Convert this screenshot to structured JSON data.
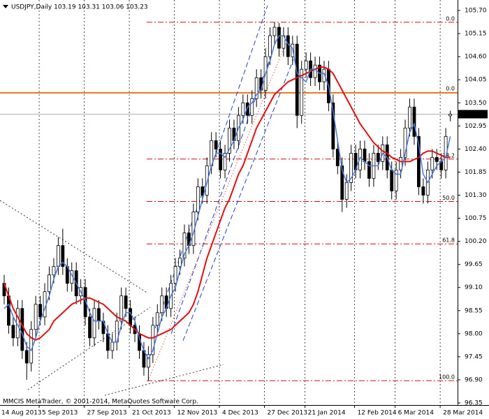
{
  "chart_data": {
    "type": "candlestick",
    "title": "USDJPY,Daily  103.19 103.31 103.06 103.23",
    "footer": "MMCIS MetaTrader, © 2001-2014, MetaQuotes Software Corp.",
    "categories": [
      "14 Aug 2013",
      null,
      null,
      null,
      null,
      null,
      null,
      null,
      null,
      "5 Sep 2013",
      null,
      null,
      null,
      null,
      null,
      null,
      null,
      null,
      null,
      "27 Sep 2013",
      null,
      null,
      null,
      null,
      null,
      null,
      null,
      null,
      null,
      "21 Oct 2013",
      null,
      null,
      null,
      null,
      null,
      null,
      null,
      null,
      null,
      "12 Nov 2013",
      null,
      null,
      null,
      null,
      null,
      null,
      null,
      null,
      null,
      "4 Dec 2013",
      null,
      null,
      null,
      null,
      null,
      null,
      null,
      null,
      null,
      "27 Dec 2013",
      null,
      null,
      null,
      null,
      null,
      null,
      null,
      null,
      "21 Jan 2014",
      null,
      null,
      null,
      null,
      null,
      null,
      null,
      null,
      null,
      null,
      "12 Feb 2014",
      null,
      null,
      null,
      null,
      null,
      null,
      null,
      null,
      "6 Mar 2014",
      null,
      null,
      null,
      null,
      null,
      null,
      null,
      null,
      null,
      "28 Mar 2014",
      null
    ],
    "open": [
      99.2,
      98.9,
      98.2,
      97.9,
      98.6,
      97.6,
      97.3,
      98.1,
      98.7,
      98.4,
      99.0,
      99.4,
      99.6,
      100.1,
      99.6,
      99.2,
      99.5,
      98.9,
      99.1,
      98.4,
      97.9,
      98.6,
      98.3,
      98.0,
      97.6,
      97.8,
      98.3,
      98.9,
      98.6,
      98.2,
      98.0,
      97.6,
      97.2,
      97.5,
      98.2,
      98.5,
      98.9,
      98.6,
      99.2,
      99.6,
      99.8,
      100.4,
      100.1,
      100.9,
      101.5,
      101.3,
      102.0,
      102.6,
      102.4,
      101.9,
      102.3,
      102.9,
      102.6,
      103.2,
      103.5,
      103.2,
      103.6,
      104.1,
      103.8,
      104.6,
      105.1,
      105.3,
      104.8,
      105.1,
      104.6,
      104.9,
      103.2,
      104.3,
      104.5,
      104.1,
      104.4,
      104.0,
      104.3,
      103.5,
      102.4,
      102.0,
      101.2,
      101.6,
      102.3,
      101.9,
      102.4,
      102.1,
      101.7,
      102.3,
      102.1,
      102.5,
      101.9,
      101.4,
      101.9,
      102.2,
      102.9,
      103.4,
      102.7,
      101.5,
      101.3,
      101.9,
      102.2,
      102.1,
      101.9,
      103.19
    ],
    "high": [
      99.4,
      99.1,
      98.4,
      98.8,
      98.8,
      97.8,
      98.3,
      98.9,
      98.9,
      99.2,
      99.6,
      99.8,
      100.3,
      100.5,
      99.8,
      99.7,
      99.7,
      99.3,
      99.3,
      98.6,
      98.8,
      98.8,
      98.5,
      98.2,
      98.0,
      98.5,
      99.1,
      99.1,
      98.8,
      98.4,
      98.2,
      97.8,
      97.7,
      98.4,
      98.7,
      99.1,
      99.1,
      99.4,
      99.8,
      100.0,
      100.6,
      100.6,
      101.1,
      101.7,
      101.7,
      102.2,
      102.8,
      102.8,
      102.6,
      102.5,
      103.1,
      103.1,
      103.4,
      103.7,
      103.7,
      103.8,
      104.3,
      104.3,
      104.8,
      105.3,
      105.42,
      105.4,
      105.3,
      105.3,
      105.1,
      105.1,
      104.5,
      104.7,
      104.7,
      104.6,
      104.6,
      104.5,
      104.5,
      103.7,
      102.6,
      102.2,
      101.8,
      102.5,
      102.5,
      102.6,
      102.6,
      102.3,
      102.5,
      102.5,
      102.7,
      102.7,
      102.1,
      102.1,
      102.4,
      103.1,
      103.6,
      103.6,
      102.9,
      101.7,
      102.1,
      102.4,
      102.4,
      102.3,
      102.9,
      103.31
    ],
    "low": [
      98.7,
      98.0,
      97.7,
      97.7,
      97.4,
      96.9,
      97.1,
      97.9,
      98.2,
      98.2,
      98.8,
      99.2,
      99.4,
      99.4,
      99.0,
      99.0,
      98.7,
      98.7,
      98.2,
      97.7,
      97.7,
      98.1,
      97.8,
      97.4,
      97.4,
      97.6,
      98.1,
      98.4,
      98.0,
      97.8,
      97.4,
      97.0,
      96.88,
      97.3,
      98.0,
      98.3,
      98.4,
      98.4,
      99.0,
      99.4,
      99.6,
      99.9,
      99.9,
      100.7,
      101.1,
      101.1,
      101.8,
      102.2,
      101.7,
      101.7,
      102.1,
      102.4,
      102.4,
      103.0,
      103.0,
      103.0,
      103.4,
      103.6,
      103.6,
      104.4,
      104.9,
      104.6,
      104.6,
      104.4,
      104.4,
      102.9,
      103.0,
      104.1,
      103.9,
      103.9,
      103.8,
      103.8,
      103.3,
      102.2,
      101.8,
      100.9,
      101.0,
      101.4,
      101.7,
      101.7,
      101.9,
      101.5,
      101.5,
      101.9,
      101.9,
      101.7,
      101.2,
      101.2,
      101.7,
      102.0,
      102.7,
      102.5,
      101.3,
      101.1,
      101.1,
      101.7,
      101.9,
      101.7,
      101.7,
      103.06
    ],
    "close": [
      98.9,
      98.2,
      97.9,
      98.6,
      97.6,
      97.3,
      98.1,
      98.7,
      98.4,
      99.0,
      99.4,
      99.6,
      100.1,
      99.6,
      99.2,
      99.5,
      98.9,
      99.1,
      98.4,
      97.9,
      98.6,
      98.3,
      98.0,
      97.6,
      97.8,
      98.3,
      98.9,
      98.6,
      98.2,
      98.0,
      97.6,
      97.2,
      97.5,
      98.2,
      98.5,
      98.9,
      98.6,
      99.2,
      99.6,
      99.8,
      100.4,
      100.1,
      100.9,
      101.5,
      101.3,
      102.0,
      102.6,
      102.4,
      101.9,
      102.3,
      102.9,
      102.6,
      103.2,
      103.5,
      103.2,
      103.6,
      104.1,
      103.8,
      104.6,
      105.1,
      105.3,
      104.8,
      105.1,
      104.6,
      104.9,
      103.2,
      104.3,
      104.5,
      104.1,
      104.4,
      104.0,
      104.3,
      103.5,
      102.4,
      102.0,
      101.2,
      101.6,
      102.3,
      101.9,
      102.4,
      102.1,
      101.7,
      102.3,
      102.1,
      102.5,
      101.9,
      101.4,
      101.9,
      102.2,
      102.9,
      103.4,
      102.7,
      101.5,
      101.3,
      101.9,
      102.2,
      102.1,
      101.9,
      102.7,
      103.23
    ],
    "moving_averages": [
      {
        "color": "#e01010",
        "values": [
          99.2,
          98.9,
          98.6,
          98.4,
          98.2,
          98.0,
          97.9,
          97.85,
          97.9,
          98.0,
          98.1,
          98.3,
          98.4,
          98.5,
          98.6,
          98.7,
          98.75,
          98.8,
          98.85,
          98.85,
          98.8,
          98.75,
          98.7,
          98.6,
          98.5,
          98.4,
          98.35,
          98.3,
          98.2,
          98.1,
          98.0,
          97.95,
          97.9,
          97.9,
          97.95,
          98.0,
          98.05,
          98.1,
          98.2,
          98.3,
          98.4,
          98.5,
          98.7,
          99.0,
          99.4,
          99.8,
          100.1,
          100.4,
          100.7,
          101.0,
          101.2,
          101.5,
          101.8,
          102.0,
          102.3,
          102.6,
          102.9,
          103.1,
          103.3,
          103.5,
          103.7,
          103.8,
          103.9,
          104.0,
          104.05,
          104.1,
          104.15,
          104.2,
          104.25,
          104.3,
          104.35,
          104.35,
          104.3,
          104.2,
          104.0,
          103.8,
          103.6,
          103.4,
          103.2,
          103.0,
          102.85,
          102.7,
          102.55,
          102.45,
          102.35,
          102.3,
          102.2,
          102.15,
          102.1,
          102.1,
          102.1,
          102.15,
          102.2,
          102.3,
          102.35,
          102.35,
          102.3,
          102.25,
          102.2,
          102.2
        ]
      },
      {
        "color": "#4a78d4",
        "values": [
          98.6,
          98.7,
          98.4,
          98.2,
          98.0,
          97.7,
          97.6,
          97.9,
          98.3,
          98.6,
          98.9,
          99.3,
          99.6,
          99.7,
          99.6,
          99.4,
          99.2,
          99.0,
          98.8,
          98.5,
          98.3,
          98.3,
          98.3,
          98.0,
          97.8,
          97.8,
          98.2,
          98.5,
          98.5,
          98.3,
          97.9,
          97.6,
          97.4,
          97.6,
          98.0,
          98.4,
          98.6,
          98.9,
          99.1,
          99.5,
          99.9,
          100.1,
          100.4,
          100.8,
          101.2,
          101.6,
          102.0,
          102.3,
          102.3,
          102.2,
          102.4,
          102.6,
          102.9,
          103.1,
          103.4,
          103.5,
          103.7,
          103.8,
          104.2,
          104.5,
          104.9,
          105.1,
          105.1,
          104.9,
          104.8,
          104.2,
          104.1,
          104.0,
          104.3,
          104.3,
          104.2,
          104.2,
          103.9,
          103.3,
          102.6,
          101.9,
          101.6,
          101.7,
          101.9,
          102.2,
          102.1,
          102.0,
          102.0,
          102.0,
          102.3,
          102.2,
          101.9,
          101.8,
          101.8,
          102.3,
          102.8,
          103.0,
          102.5,
          101.8,
          101.6,
          101.8,
          102.0,
          102.1,
          102.2,
          102.7
        ]
      }
    ],
    "levels": [
      {
        "label": "0.0",
        "value": 105.42
      },
      {
        "label": "38.2",
        "value": 102.16
      },
      {
        "label": "50.0",
        "value": 101.15
      },
      {
        "label": "61.8",
        "value": 100.14
      },
      {
        "label": "100.0",
        "value": 96.88
      }
    ],
    "level_color": "#d01010",
    "hline": {
      "label": "0.0",
      "value": 103.74,
      "color": "#e8741c"
    },
    "ylim": [
      96.3,
      105.95
    ],
    "yticks": [
      {
        "value": 105.7,
        "label": "105.70"
      },
      105.15,
      {
        "value": 104.6,
        "label": "104.60"
      },
      104.05,
      {
        "value": 103.5,
        "label": "103.50"
      },
      102.95,
      {
        "value": 102.4,
        "label": "102.40"
      },
      101.85,
      {
        "value": 101.3,
        "label": "101.30"
      },
      100.75,
      {
        "value": 100.2,
        "label": "100.20"
      },
      99.65,
      {
        "value": 99.1,
        "label": "99.10"
      },
      98.55,
      {
        "value": 98,
        "label": "98.00"
      },
      97.45,
      {
        "value": 96.9,
        "label": "96.90"
      },
      96.35
    ],
    "grid": true
  }
}
